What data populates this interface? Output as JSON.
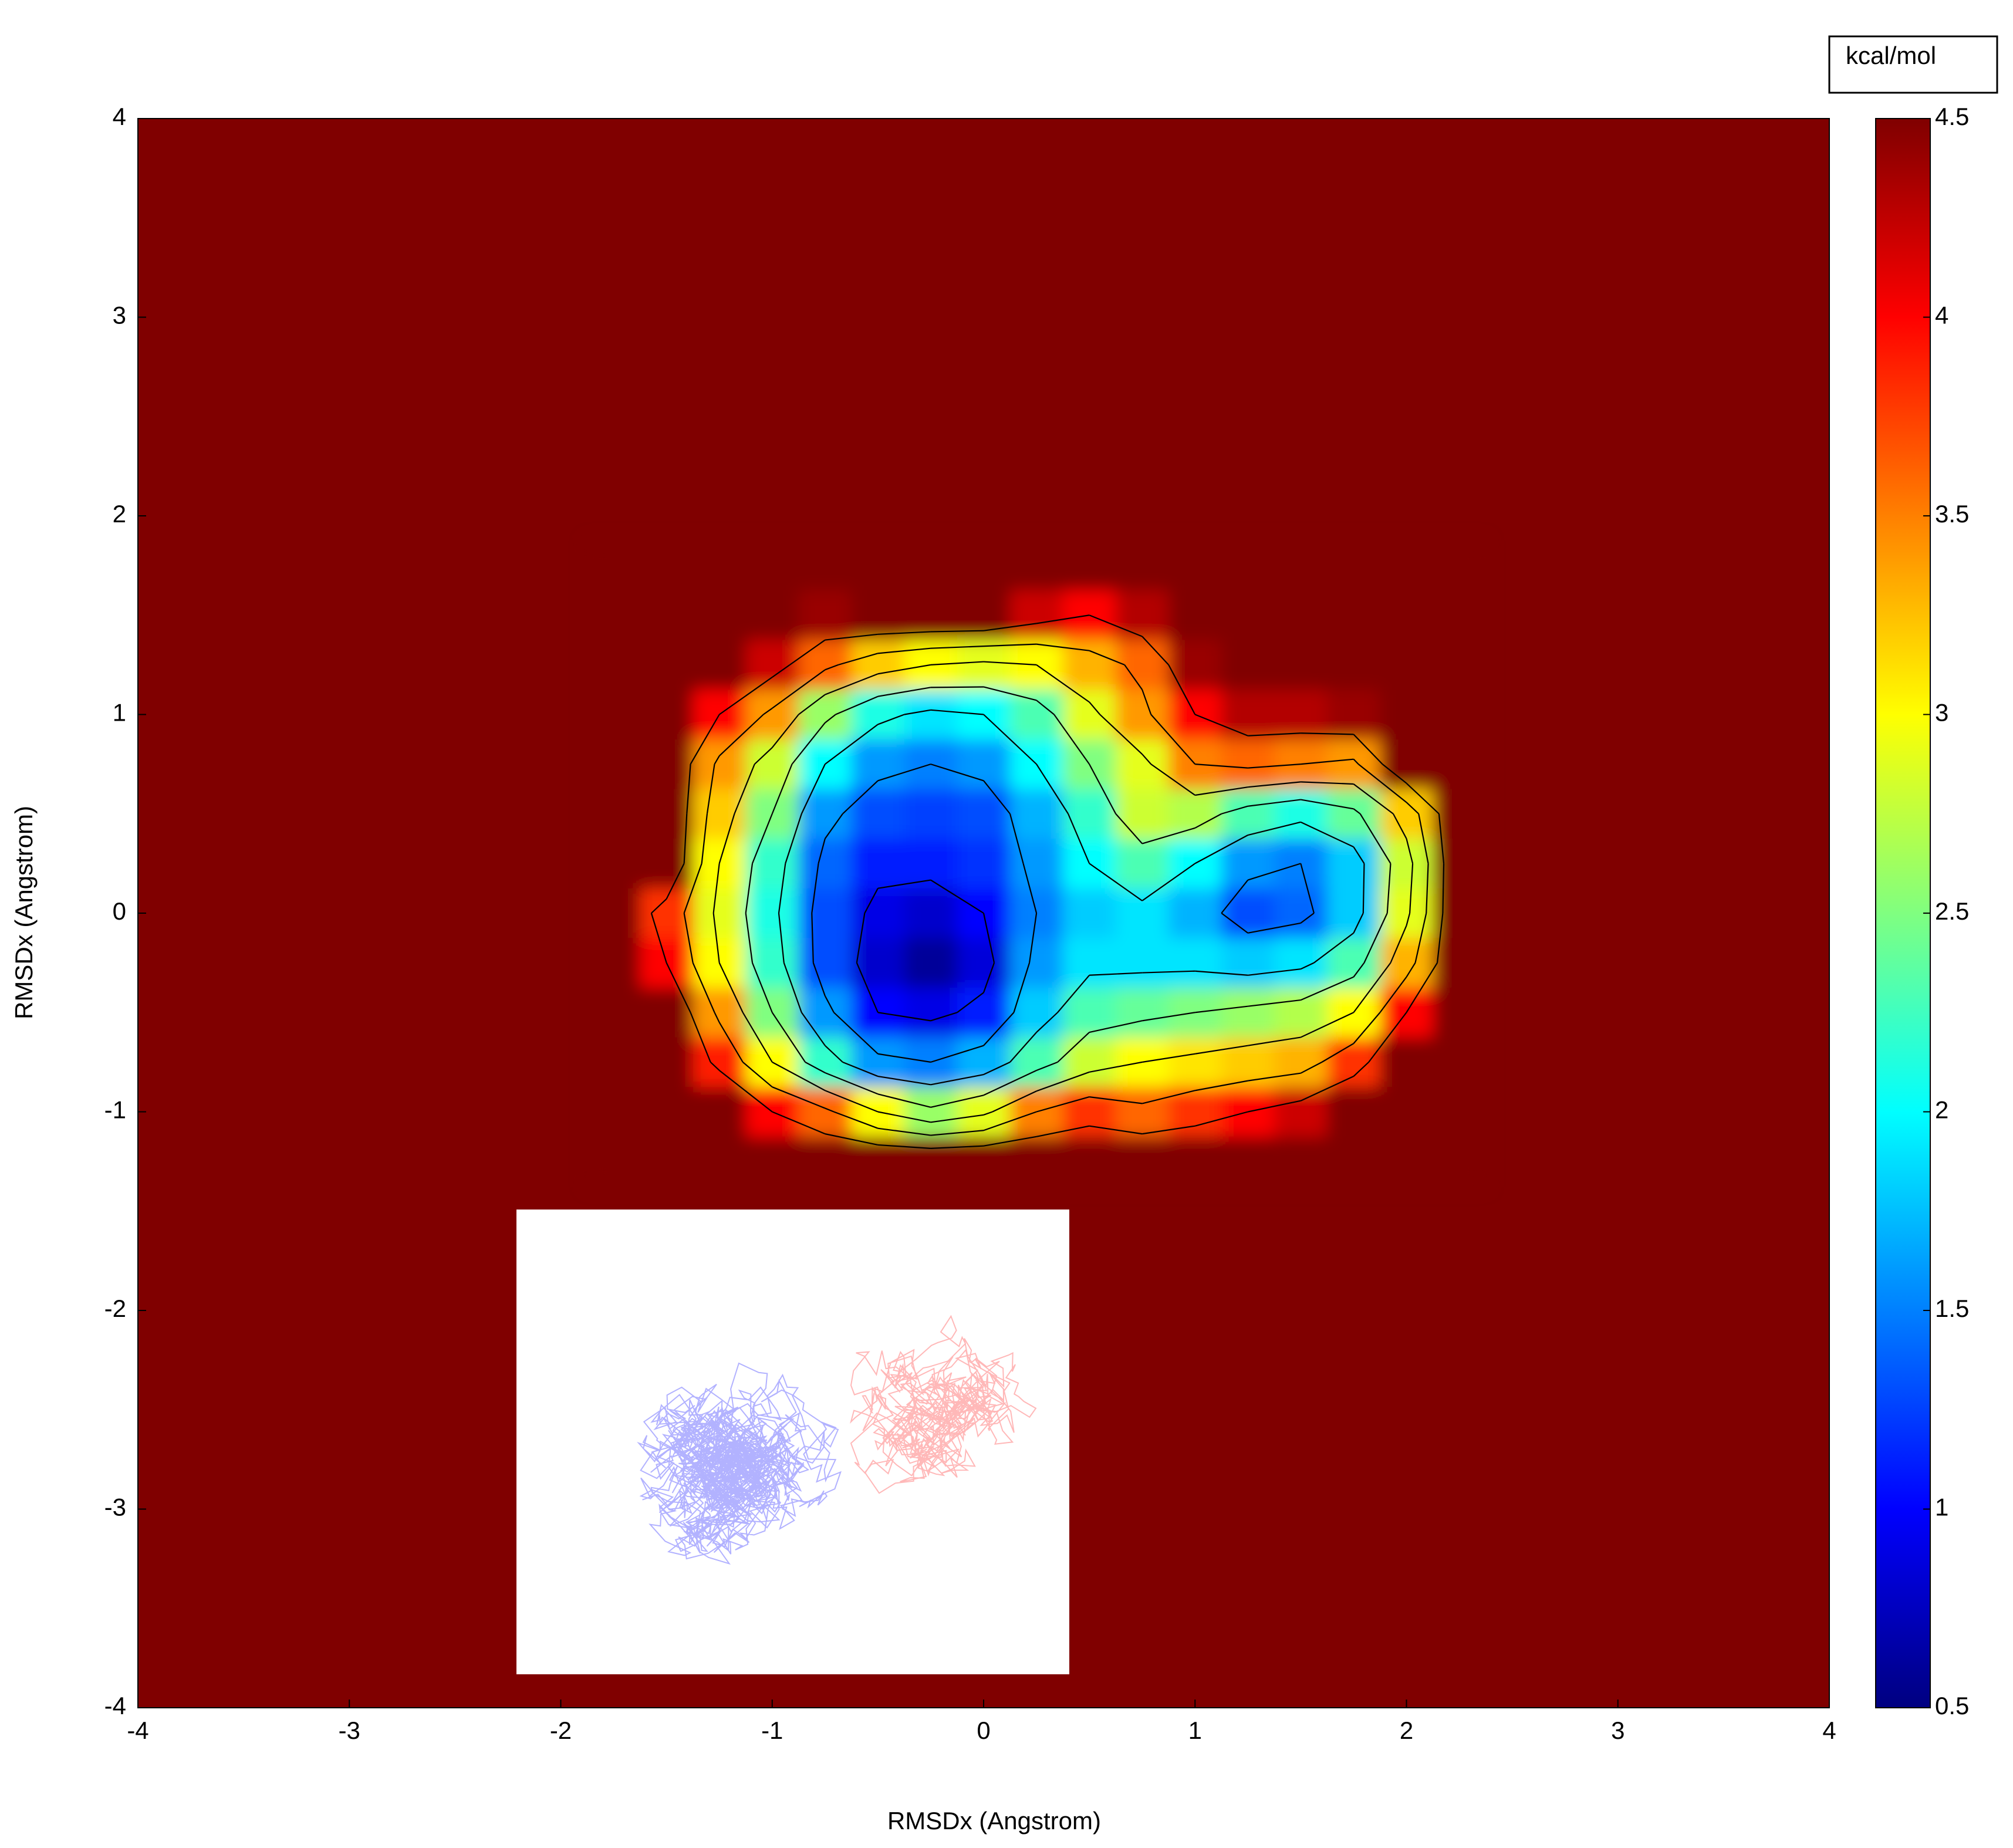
{
  "chart_data": {
    "type": "heatmap",
    "x_label": "RMSDx (Angstrom)",
    "y_label": "RMSDx (Angstrom)",
    "colorbar_label": "kcal/mol",
    "xlim": [
      -4,
      4
    ],
    "ylim": [
      -4,
      4
    ],
    "xticks": [
      -4,
      -3,
      -2,
      -1,
      0,
      1,
      2,
      3,
      4
    ],
    "yticks": [
      -4,
      -3,
      -2,
      -1,
      0,
      1,
      2,
      3,
      4
    ],
    "clim": [
      0.5,
      4.5
    ],
    "cticks": [
      0.5,
      1,
      1.5,
      2,
      2.5,
      3,
      3.5,
      4,
      4.5
    ],
    "colormap": "jet",
    "contour_levels": [
      1,
      1.5,
      2,
      2.5,
      3,
      3.5,
      4
    ],
    "x": [
      -1.75,
      -1.5,
      -1.25,
      -1,
      -0.75,
      -0.5,
      -0.25,
      0,
      0.25,
      0.5,
      0.75,
      1,
      1.25,
      1.5,
      1.75,
      2,
      2.25
    ],
    "y": [
      1.75,
      1.5,
      1.25,
      1,
      0.75,
      0.5,
      0.25,
      0,
      -0.25,
      -0.5,
      -0.75,
      -1,
      -1.25
    ],
    "z": [
      [
        4.5,
        4.5,
        4.5,
        4.5,
        4.5,
        4.5,
        4.5,
        4.5,
        4.5,
        4.5,
        4.5,
        4.5,
        4.5,
        4.5,
        4.5,
        4.5,
        4.5
      ],
      [
        4.5,
        4.5,
        4.5,
        4.5,
        4.4,
        4.5,
        4.5,
        4.5,
        4.2,
        4.0,
        4.3,
        4.5,
        4.5,
        4.5,
        4.5,
        4.5,
        4.5
      ],
      [
        4.5,
        4.5,
        4.5,
        4.2,
        3.6,
        3.2,
        3.0,
        2.9,
        3.0,
        3.3,
        3.6,
        4.4,
        4.5,
        4.5,
        4.5,
        4.5,
        4.5
      ],
      [
        4.5,
        4.5,
        4.0,
        3.4,
        2.6,
        2.1,
        1.9,
        2.0,
        2.3,
        2.9,
        3.4,
        4.0,
        4.3,
        4.3,
        4.4,
        4.5,
        4.5
      ],
      [
        4.5,
        4.5,
        3.4,
        2.8,
        2.0,
        1.6,
        1.5,
        1.6,
        2.0,
        2.5,
        2.9,
        3.5,
        3.6,
        3.5,
        3.4,
        4.5,
        4.5
      ],
      [
        4.5,
        4.5,
        3.2,
        2.5,
        1.6,
        1.3,
        1.25,
        1.3,
        1.7,
        2.2,
        2.8,
        2.7,
        2.3,
        2.1,
        2.4,
        3.2,
        4.5
      ],
      [
        4.5,
        4.5,
        3.0,
        2.2,
        1.4,
        1.1,
        1.1,
        1.2,
        1.6,
        2.0,
        2.3,
        2.0,
        1.6,
        1.5,
        1.8,
        2.8,
        4.5
      ],
      [
        4.5,
        3.8,
        2.9,
        2.1,
        1.3,
        0.9,
        0.8,
        1.0,
        1.5,
        1.8,
        1.9,
        1.7,
        1.3,
        1.4,
        1.8,
        2.9,
        4.5
      ],
      [
        4.5,
        4.0,
        3.0,
        2.2,
        1.3,
        0.8,
        0.6,
        0.85,
        1.6,
        1.9,
        1.9,
        1.9,
        1.8,
        1.9,
        2.3,
        3.3,
        4.5
      ],
      [
        4.5,
        4.5,
        3.4,
        2.5,
        1.6,
        1.0,
        0.9,
        1.1,
        1.8,
        2.3,
        2.4,
        2.5,
        2.6,
        2.7,
        3.0,
        4.0,
        4.5
      ],
      [
        4.5,
        4.5,
        3.9,
        3.0,
        2.2,
        1.6,
        1.5,
        1.7,
        2.3,
        2.8,
        3.0,
        3.1,
        3.2,
        3.3,
        3.8,
        4.5,
        4.5
      ],
      [
        4.5,
        4.5,
        4.5,
        4.0,
        3.6,
        3.0,
        2.6,
        2.9,
        3.5,
        3.8,
        3.6,
        3.8,
        4.0,
        4.2,
        4.5,
        4.5,
        4.5
      ],
      [
        4.5,
        4.5,
        4.5,
        4.5,
        4.5,
        4.5,
        4.5,
        4.5,
        4.5,
        4.5,
        4.5,
        4.5,
        4.5,
        4.5,
        4.5,
        4.5,
        4.5
      ]
    ]
  }
}
